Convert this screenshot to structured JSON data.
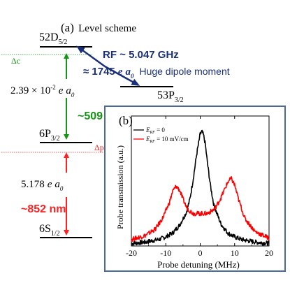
{
  "level_scheme": {
    "panel_label": "(a)",
    "title": "Level scheme",
    "levels": {
      "d52": {
        "main": "52D",
        "sub": "5/2"
      },
      "p53": {
        "main": "53P",
        "sub": "3/2"
      },
      "p6": {
        "main": "6P",
        "sub": "3/2"
      },
      "s6": {
        "main": "6S",
        "sub": "1/2"
      }
    },
    "detunings": {
      "coupling": "Δc",
      "probe": "Δp"
    },
    "rf": {
      "label": "RF ~ 5.047 GHz",
      "dipole_prefix": "≈ 1745",
      "dipole_unit_e": "e",
      "dipole_unit_a": "a",
      "dipole_unit_sub": "0",
      "dipole_note": "Huge dipole moment"
    },
    "coupling": {
      "dipole_text": "2.39 × 10",
      "exp": "-2",
      "unit_e": "e",
      "unit_a": "a",
      "unit_sub": "0",
      "wavelength": "~509 nm"
    },
    "probe": {
      "dipole_text": "5.178",
      "unit_e": "e",
      "unit_a": "a",
      "unit_sub": "0",
      "wavelength": "~852 nm"
    },
    "colors": {
      "coupling": "#149514",
      "probe": "#ff2020",
      "rf": "#1a2f7a",
      "frame": "#4a6a9c"
    }
  },
  "inset": {
    "panel_label": "(b)",
    "legend": [
      {
        "prefix": "E",
        "sub": "RF",
        "rest": " = 0",
        "color": "#000000"
      },
      {
        "prefix": "E",
        "sub": "RF",
        "rest": " = 10 mV/cm",
        "color": "#ff0000"
      }
    ],
    "xlabel": "Probe detuning (MHz)",
    "ylabel": "Probe transmission (a.u.)"
  },
  "chart_data": {
    "type": "line",
    "xlabel": "Probe detuning (MHz)",
    "ylabel": "Probe transmission (a.u.)",
    "xlim": [
      -20,
      20
    ],
    "ylim": [
      0,
      1.0
    ],
    "xticks": [
      -20,
      -10,
      0,
      10,
      20
    ],
    "grid": false,
    "legend_position": "top-left",
    "series": [
      {
        "name": "E_RF = 0",
        "color": "#000000",
        "x": [
          -20,
          -16,
          -12,
          -10,
          -8,
          -6,
          -4,
          -3,
          -2,
          -1,
          0,
          0.5,
          1,
          1.5,
          2,
          3,
          4,
          6,
          8,
          10,
          12,
          16,
          20
        ],
        "y": [
          0.02,
          0.03,
          0.05,
          0.07,
          0.1,
          0.16,
          0.26,
          0.36,
          0.52,
          0.71,
          0.86,
          0.88,
          0.85,
          0.78,
          0.66,
          0.46,
          0.31,
          0.17,
          0.1,
          0.07,
          0.05,
          0.03,
          0.02
        ]
      },
      {
        "name": "E_RF = 10 mV/cm",
        "color": "#ff0000",
        "x": [
          -20,
          -16,
          -13,
          -11,
          -9,
          -8,
          -7,
          -6,
          -5,
          -4,
          -3,
          -2,
          0,
          2,
          4,
          5,
          6,
          7,
          8,
          9,
          10,
          11,
          13,
          16,
          20
        ],
        "y": [
          0.05,
          0.08,
          0.13,
          0.21,
          0.33,
          0.42,
          0.46,
          0.43,
          0.36,
          0.3,
          0.27,
          0.25,
          0.25,
          0.25,
          0.28,
          0.32,
          0.37,
          0.43,
          0.49,
          0.52,
          0.47,
          0.37,
          0.21,
          0.11,
          0.06
        ]
      }
    ]
  }
}
